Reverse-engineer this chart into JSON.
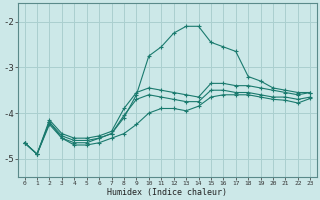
{
  "title": "",
  "xlabel": "Humidex (Indice chaleur)",
  "ylabel": "",
  "bg_color": "#cce8e8",
  "grid_color": "#aacfcf",
  "line_color": "#1a7a6e",
  "xlim": [
    -0.5,
    23.5
  ],
  "ylim": [
    -5.4,
    -1.6
  ],
  "yticks": [
    -5,
    -4,
    -3,
    -2
  ],
  "xticks": [
    0,
    1,
    2,
    3,
    4,
    5,
    6,
    7,
    8,
    9,
    10,
    11,
    12,
    13,
    14,
    15,
    16,
    17,
    18,
    19,
    20,
    21,
    22,
    23
  ],
  "series": [
    {
      "x": [
        0,
        1,
        2,
        3,
        4,
        5,
        6,
        7,
        8,
        9,
        10,
        11,
        12,
        13,
        14,
        15,
        16,
        17,
        18,
        19,
        20,
        21,
        22,
        23
      ],
      "y": [
        -4.65,
        -4.9,
        -4.2,
        -4.55,
        -4.65,
        -4.65,
        -4.55,
        -4.45,
        -4.1,
        -3.6,
        -2.75,
        -2.55,
        -2.25,
        -2.1,
        -2.1,
        -2.45,
        -2.55,
        -2.65,
        -3.2,
        -3.3,
        -3.45,
        -3.5,
        -3.55,
        -3.55
      ]
    },
    {
      "x": [
        0,
        1,
        2,
        3,
        4,
        5,
        6,
        7,
        8,
        9,
        10,
        11,
        12,
        13,
        14,
        15,
        16,
        17,
        18,
        19,
        20,
        21,
        22,
        23
      ],
      "y": [
        -4.65,
        -4.9,
        -4.15,
        -4.45,
        -4.55,
        -4.55,
        -4.5,
        -4.4,
        -3.9,
        -3.55,
        -3.45,
        -3.5,
        -3.55,
        -3.6,
        -3.65,
        -3.35,
        -3.35,
        -3.4,
        -3.4,
        -3.45,
        -3.5,
        -3.55,
        -3.6,
        -3.55
      ]
    },
    {
      "x": [
        0,
        1,
        2,
        3,
        4,
        5,
        6,
        7,
        8,
        9,
        10,
        11,
        12,
        13,
        14,
        15,
        16,
        17,
        18,
        19,
        20,
        21,
        22,
        23
      ],
      "y": [
        -4.65,
        -4.9,
        -4.2,
        -4.5,
        -4.6,
        -4.6,
        -4.55,
        -4.45,
        -4.05,
        -3.7,
        -3.6,
        -3.65,
        -3.7,
        -3.75,
        -3.75,
        -3.5,
        -3.5,
        -3.55,
        -3.55,
        -3.6,
        -3.65,
        -3.65,
        -3.7,
        -3.65
      ]
    },
    {
      "x": [
        0,
        1,
        2,
        3,
        4,
        5,
        6,
        7,
        8,
        9,
        10,
        11,
        12,
        13,
        14,
        15,
        16,
        17,
        18,
        19,
        20,
        21,
        22,
        23
      ],
      "y": [
        -4.65,
        -4.9,
        -4.25,
        -4.55,
        -4.7,
        -4.7,
        -4.65,
        -4.55,
        -4.45,
        -4.25,
        -4.0,
        -3.9,
        -3.9,
        -3.95,
        -3.85,
        -3.65,
        -3.6,
        -3.6,
        -3.6,
        -3.65,
        -3.7,
        -3.72,
        -3.78,
        -3.68
      ]
    }
  ]
}
